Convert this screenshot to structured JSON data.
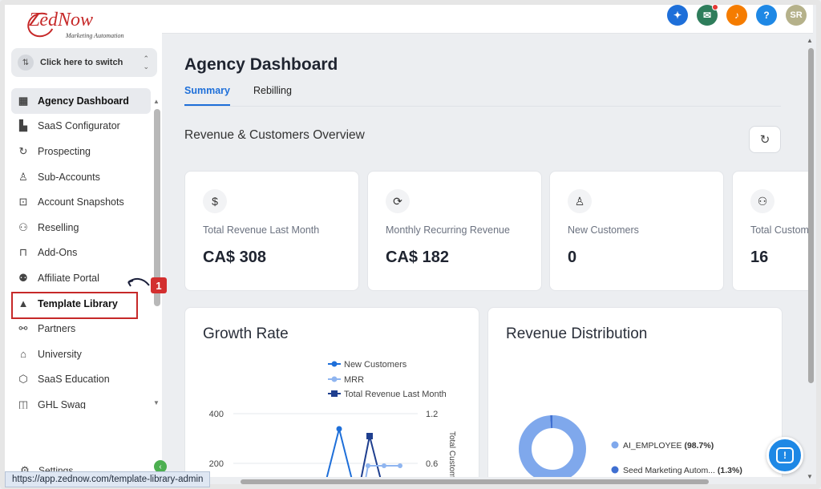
{
  "logo": {
    "main": "ZedNow",
    "sub": "Marketing Automation"
  },
  "switcher": {
    "label": "Click here to switch"
  },
  "sidebar": {
    "items": [
      {
        "label": "Agency Dashboard",
        "icon": "dashboard-icon",
        "glyph": "▦"
      },
      {
        "label": "SaaS Configurator",
        "icon": "bar-chart-icon",
        "glyph": "▙"
      },
      {
        "label": "Prospecting",
        "icon": "refresh-icon",
        "glyph": "↻"
      },
      {
        "label": "Sub-Accounts",
        "icon": "user-icon",
        "glyph": "♙"
      },
      {
        "label": "Account Snapshots",
        "icon": "snapshot-icon",
        "glyph": "⊡"
      },
      {
        "label": "Reselling",
        "icon": "tree-icon",
        "glyph": "⚇"
      },
      {
        "label": "Add-Ons",
        "icon": "lock-icon",
        "glyph": "⊓"
      },
      {
        "label": "Affiliate Portal",
        "icon": "users-icon",
        "glyph": "⚉"
      },
      {
        "label": "Template Library",
        "icon": "shapes-icon",
        "glyph": "▲"
      },
      {
        "label": "Partners",
        "icon": "handshake-icon",
        "glyph": "⚯"
      },
      {
        "label": "University",
        "icon": "graduation-cap-icon",
        "glyph": "⌂"
      },
      {
        "label": "SaaS Education",
        "icon": "cube-icon",
        "glyph": "⬡"
      },
      {
        "label": "GHL Swag",
        "icon": "bag-icon",
        "glyph": "◫"
      }
    ],
    "settings_label": "Settings"
  },
  "annotation": {
    "badge": "1"
  },
  "topbar": {
    "avatar_initials": "SR",
    "help_glyph": "?",
    "colors": {
      "blue": "#1e6fd9",
      "green": "#2e7d5b",
      "orange": "#f57c00",
      "help": "#1e88e5",
      "avatar": "#b5b18a"
    }
  },
  "main": {
    "title": "Agency Dashboard",
    "tabs": [
      {
        "label": "Summary"
      },
      {
        "label": "Rebilling"
      }
    ],
    "section_title": "Revenue & Customers Overview",
    "cards": [
      {
        "icon": "dollar-icon",
        "glyph": "$",
        "label": "Total Revenue Last Month",
        "value": "CA$ 308"
      },
      {
        "icon": "recurring-icon",
        "glyph": "⟳",
        "label": "Monthly Recurring Revenue",
        "value": "CA$ 182"
      },
      {
        "icon": "user-plus-icon",
        "glyph": "♙",
        "label": "New Customers",
        "value": "0"
      },
      {
        "icon": "users-icon",
        "glyph": "⚇",
        "label": "Total Customers",
        "value": "16"
      }
    ],
    "growth_panel": {
      "title": "Growth Rate"
    },
    "distribution_panel": {
      "title": "Revenue Distribution"
    }
  },
  "status_bar": {
    "url": "https://app.zednow.com/template-library-admin"
  },
  "chart_data": [
    {
      "type": "line",
      "title": "Growth Rate",
      "legend": [
        "New Customers",
        "MRR",
        "Total Revenue Last Month"
      ],
      "left_axis": {
        "ticks": [
          "400",
          "200"
        ]
      },
      "right_axis": {
        "ticks": [
          "1.2",
          "0.6"
        ],
        "label": "Total Customers"
      },
      "series_colors": [
        "#1e6fd9",
        "#8fb5f0",
        "#1f3f8f"
      ]
    },
    {
      "type": "pie",
      "title": "Revenue Distribution",
      "slices": [
        {
          "name": "AI_EMPLOYEE",
          "pct_label": "(98.7%)",
          "value": 98.7,
          "color": "#7fa8ec"
        },
        {
          "name": "Seed Marketing Autom...",
          "pct_label": "(1.3%)",
          "value": 1.3,
          "color": "#3f6fd1"
        }
      ]
    }
  ]
}
